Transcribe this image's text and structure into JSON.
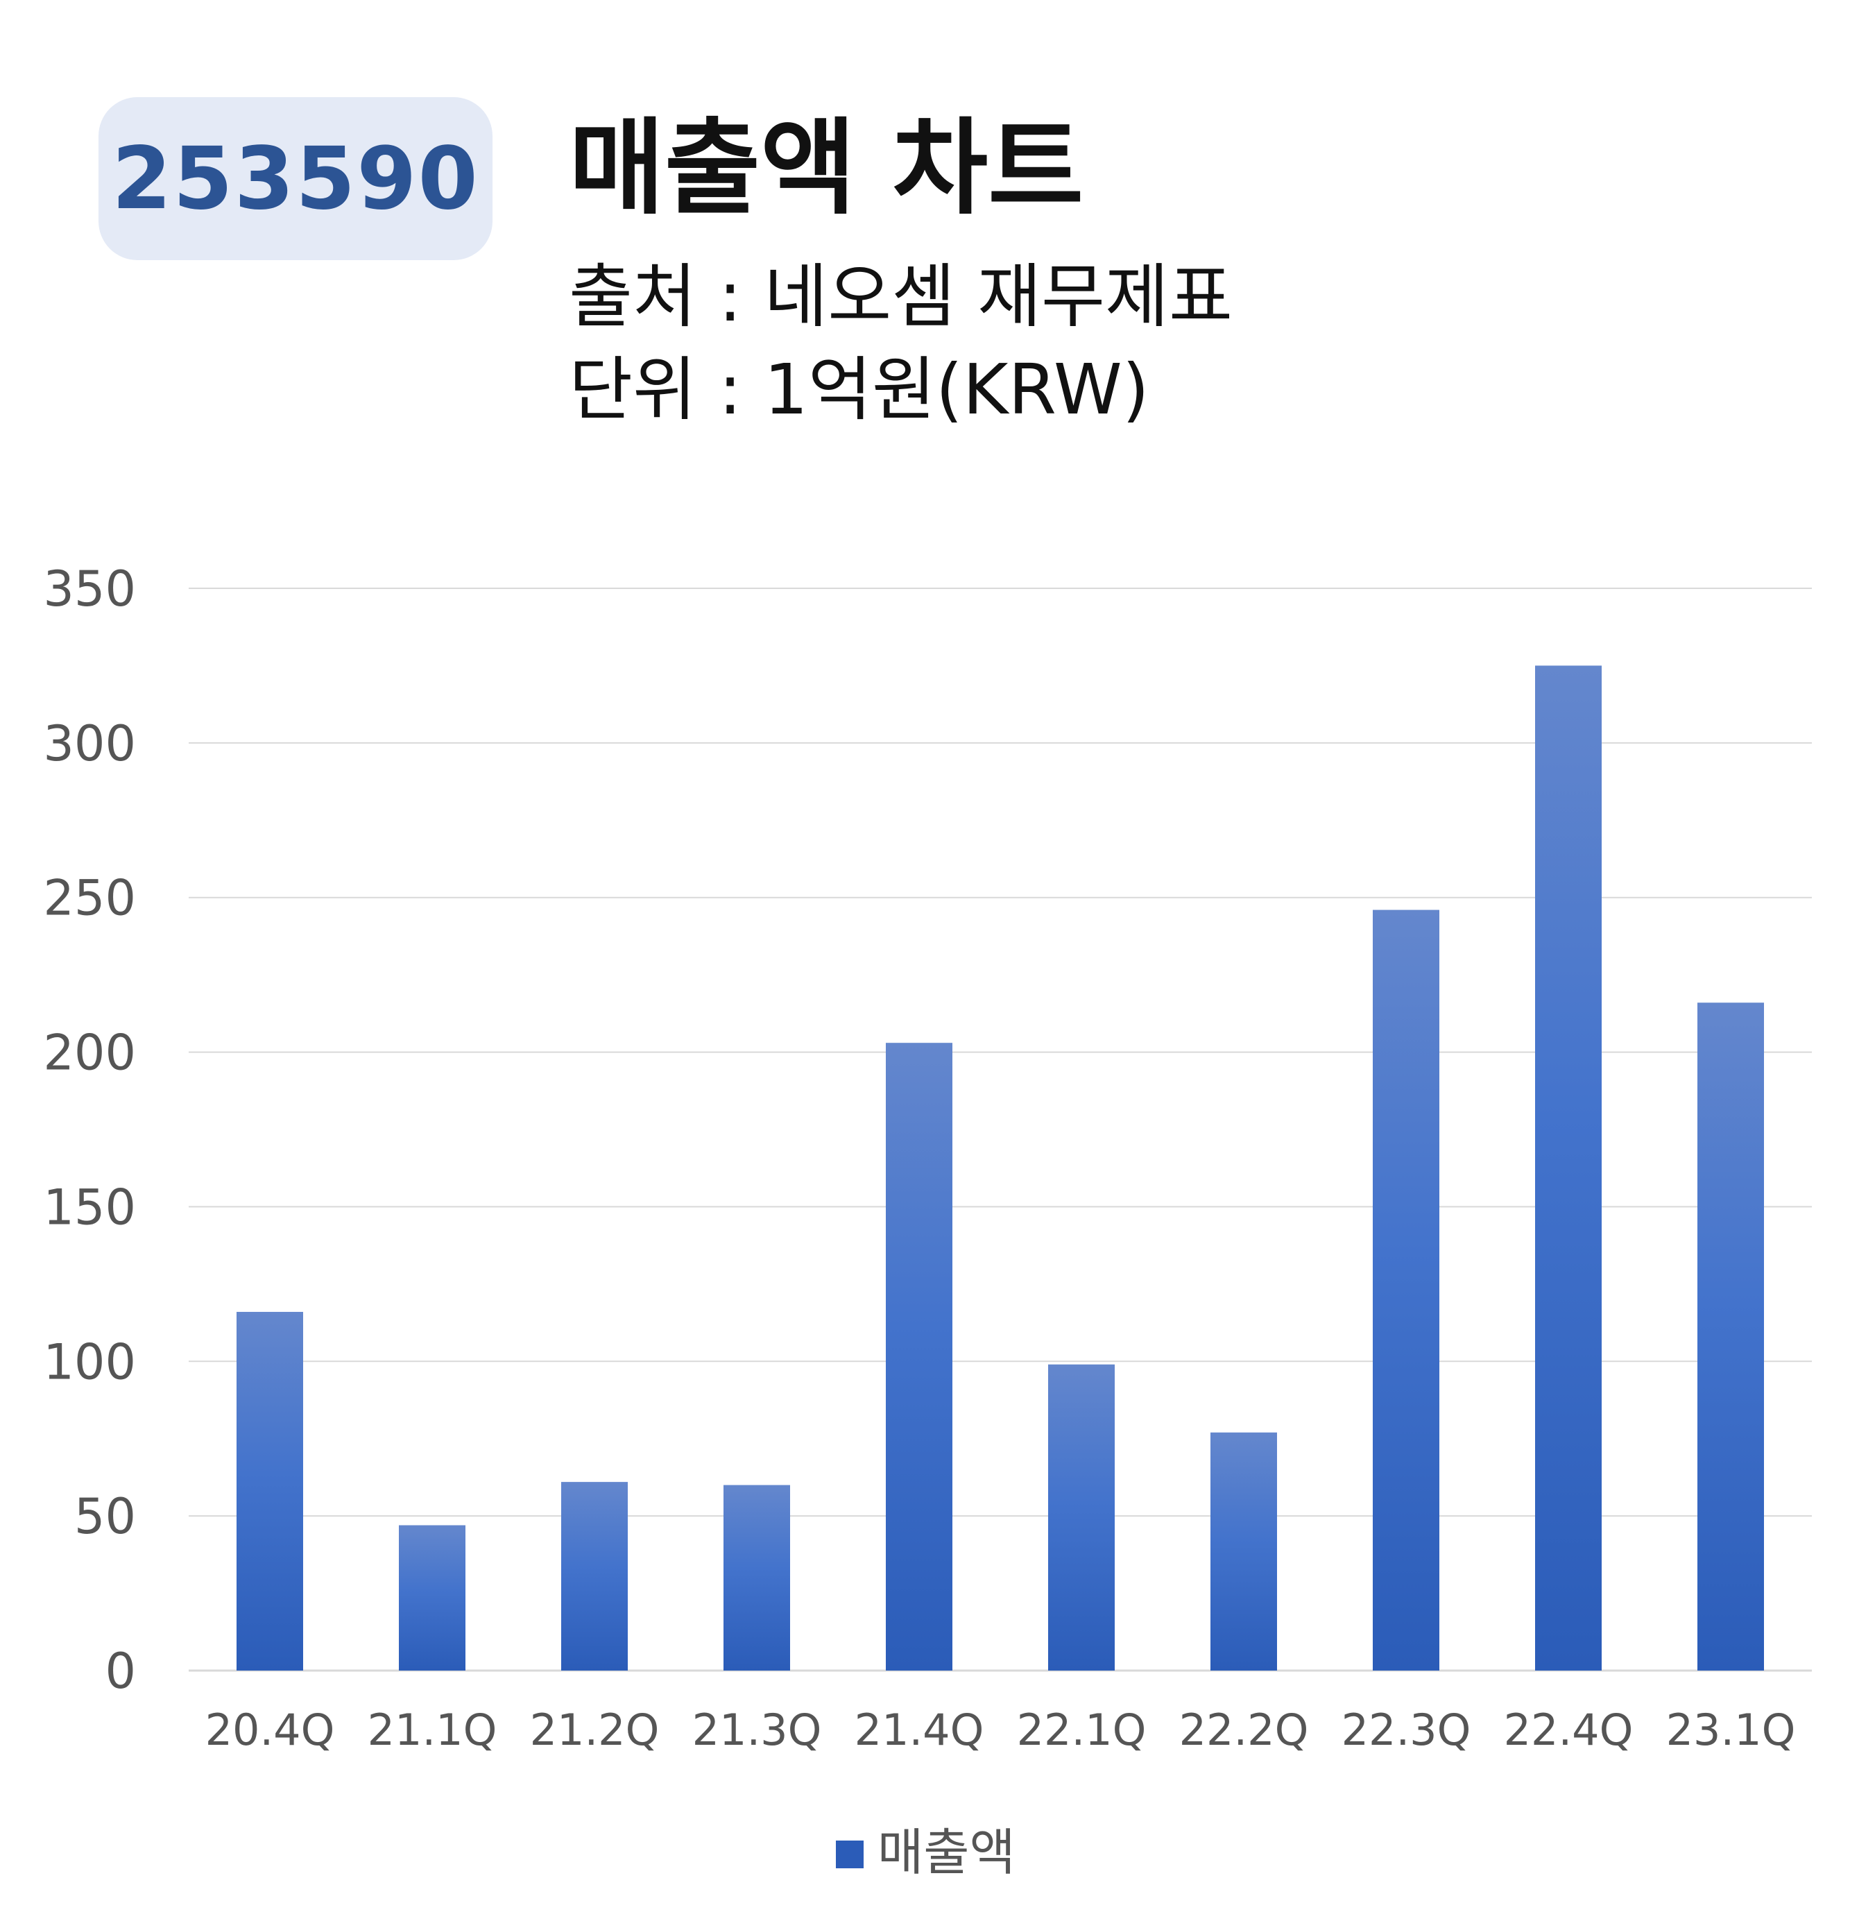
{
  "header": {
    "code": "253590",
    "title": "매출액 차트",
    "source_line": "출처 : 네오셈 재무제표",
    "unit_line": "단위 : 1억원(KRW)"
  },
  "colors": {
    "badge_bg": "#e4eaf6",
    "badge_text": "#2c5494",
    "bar_top": "#6487cd",
    "bar_bottom": "#2b5cb8",
    "grid": "#d9d9d9"
  },
  "chart_data": {
    "type": "bar",
    "categories": [
      "20.4Q",
      "21.1Q",
      "21.2Q",
      "21.3Q",
      "21.4Q",
      "22.1Q",
      "22.2Q",
      "22.3Q",
      "22.4Q",
      "23.1Q"
    ],
    "series": [
      {
        "name": "매출액",
        "values": [
          116,
          47,
          61,
          60,
          203,
          99,
          77,
          246,
          325,
          216
        ]
      }
    ],
    "ylim": [
      0,
      350
    ],
    "yticks": [
      0,
      50,
      100,
      150,
      200,
      250,
      300,
      350
    ],
    "grid": true,
    "legend": "bottom-center"
  }
}
